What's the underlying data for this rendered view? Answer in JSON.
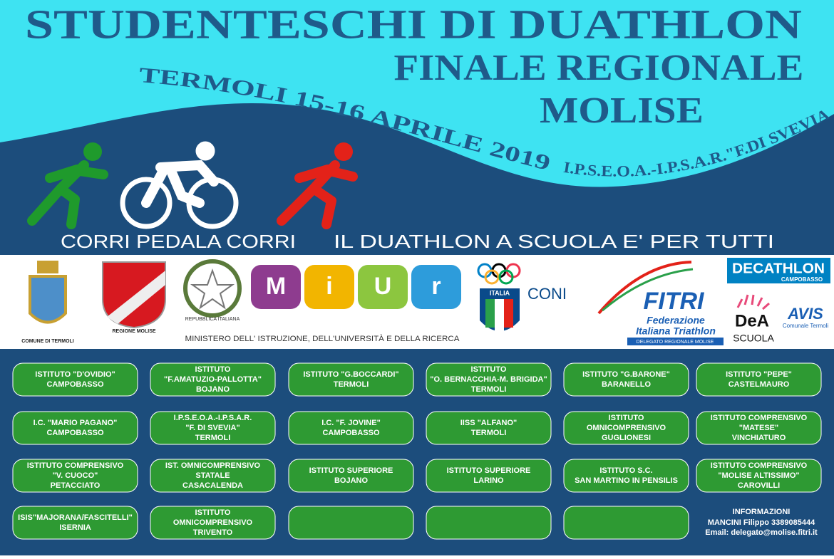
{
  "header": {
    "title": "STUDENTESCHI  DI  DUATHLON",
    "subtitle": "FINALE REGIONALE",
    "region": "MOLISE",
    "event_line": "TERMOLI 15-16 APRILE 2019",
    "venue": "I.P.S.E.O.A.-I.P.S.A.R.\"F.DI SVEVIA\"",
    "slogan_left": "CORRI  PEDALA  CORRI",
    "slogan_right": "IL DUATHLON A SCUOLA E' PER TUTTI"
  },
  "logos": {
    "comune": "COMUNE DI TERMOLI",
    "regione": "REGIONE MOLISE",
    "repubblica": "REPUBBLICA ITALIANA",
    "miur": [
      "M",
      "i",
      "U",
      "r"
    ],
    "ministero": "MINISTERO DELL' ISTRUZIONE, DELL'UNIVERSITÀ E DELLA RICERCA",
    "italia": "ITALIA",
    "coni": "CONI",
    "fitri": "FITRI",
    "fitri_name": [
      "Federazione",
      "Italiana Triathlon"
    ],
    "fitri_sub": "DELEGATO REGIONALE MOLISE",
    "decathlon": "DECATHLON",
    "decathlon_city": "CAMPOBASSO",
    "dea": "DeA",
    "scuola": "SCUOLA",
    "avis": "AVIS",
    "avis_sub": "Comunale Termoli"
  },
  "schools": [
    [
      [
        "ISTITUTO \"D'OVIDIO\"",
        "CAMPOBASSO"
      ],
      [
        "ISTITUTO",
        "\"F.AMATUZIO-PALLOTTA\"",
        "BOJANO"
      ],
      [
        "ISTITUTO \"G.BOCCARDI\"",
        "TERMOLI"
      ],
      [
        "ISTITUTO",
        "\"O. BERNACCHIA-M. BRIGIDA\"",
        "TERMOLI"
      ],
      [
        "ISTITUTO \"G.BARONE\"",
        "BARANELLO"
      ],
      [
        "ISTITUTO \"PEPE\"",
        "CASTELMAURO"
      ]
    ],
    [
      [
        "I.C. \"MARIO PAGANO\"",
        "CAMPOBASSO"
      ],
      [
        "I.P.S.E.O.A.-I.P.S.A.R.",
        "\"F. DI SVEVIA\"",
        "TERMOLI"
      ],
      [
        "I.C. \"F. JOVINE\"",
        "CAMPOBASSO"
      ],
      [
        "IISS \"ALFANO\"",
        "TERMOLI"
      ],
      [
        "ISTITUTO",
        "OMNICOMPRENSIVO",
        "GUGLIONESI"
      ],
      [
        "ISTITUTO COMPRENSIVO",
        "\"MATESE\"",
        "VINCHIATURO"
      ]
    ],
    [
      [
        "ISTITUTO COMPRENSIVO",
        "\"V. CUOCO\"",
        "PETACCIATO"
      ],
      [
        "IST. OMNICOMPRENSIVO",
        "STATALE",
        "CASACALENDA"
      ],
      [
        "ISTITUTO SUPERIORE",
        "BOJANO"
      ],
      [
        "ISTITUTO SUPERIORE",
        "LARINO"
      ],
      [
        "ISTITUTO S.C.",
        "SAN MARTINO IN PENSILIS"
      ],
      [
        "ISTITUTO COMPRENSIVO",
        "\"MOLISE ALTISSIMO\"",
        "CAROVILLI"
      ]
    ],
    [
      [
        "ISIS\"MAJORANA/FASCITELLI\"",
        "ISERNIA"
      ],
      [
        "ISTITUTO",
        "OMNICOMPRENSIVO",
        "TRIVENTO"
      ],
      null,
      null,
      null
    ]
  ],
  "info": [
    "INFORMAZIONI",
    "MANCINI Filippo 3389085444",
    "Email: delegato@molise.fitri.it"
  ]
}
